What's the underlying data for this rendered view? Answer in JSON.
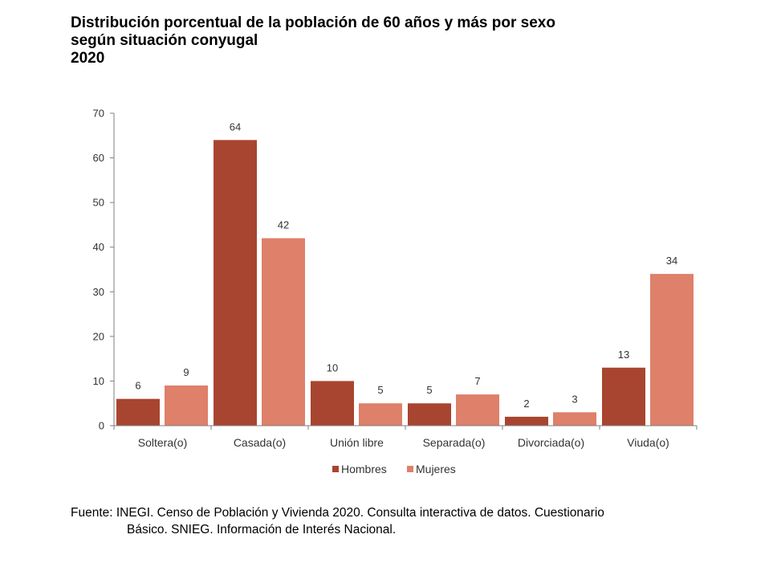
{
  "chart_data": {
    "type": "bar",
    "title_lines": [
      "Distribución porcentual de la población de 60 años y más por sexo",
      "según situación conyugal",
      "2020"
    ],
    "categories": [
      "Soltera(o)",
      "Casada(o)",
      "Unión libre",
      "Separada(o)",
      "Divorciada(o)",
      "Viuda(o)"
    ],
    "series": [
      {
        "name": "Hombres",
        "color": "#a84530",
        "values": [
          6,
          64,
          10,
          5,
          2,
          13
        ]
      },
      {
        "name": "Mujeres",
        "color": "#de806a",
        "values": [
          9,
          42,
          5,
          7,
          3,
          34
        ]
      }
    ],
    "ylim": [
      0,
      70
    ],
    "yticks": [
      "0",
      "10",
      "20",
      "30",
      "40",
      "50",
      "60",
      "70"
    ],
    "xlabel": "",
    "ylabel": "",
    "legend_position": "bottom",
    "grid": false
  },
  "source": {
    "line1": "Fuente: INEGI. Censo de Población y Vivienda 2020. Consulta interactiva de datos. Cuestionario",
    "line2": "Básico. SNIEG. Información de Interés Nacional."
  }
}
